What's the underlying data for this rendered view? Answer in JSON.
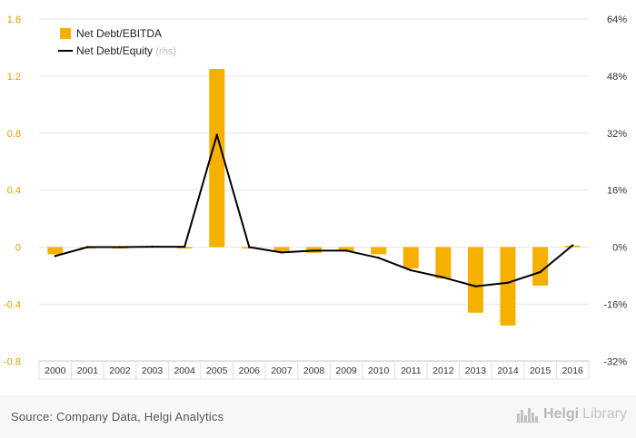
{
  "chart_data": {
    "type": "bar",
    "categories": [
      "2000",
      "2001",
      "2002",
      "2003",
      "2004",
      "2005",
      "2006",
      "2007",
      "2008",
      "2009",
      "2010",
      "2011",
      "2012",
      "2013",
      "2014",
      "2015",
      "2016"
    ],
    "series": [
      {
        "name": "Net Debt/EBITDA",
        "type": "bar",
        "axis": "left",
        "color": "#f5b000",
        "values": [
          -0.05,
          -0.01,
          -0.01,
          0.005,
          -0.005,
          1.25,
          -0.005,
          -0.03,
          -0.04,
          -0.03,
          -0.05,
          -0.15,
          -0.22,
          -0.46,
          -0.55,
          -0.27,
          0.01
        ]
      },
      {
        "name": "Net Debt/Equity",
        "name_suffix": "(rhs)",
        "type": "line",
        "axis": "right",
        "color": "#000000",
        "values": [
          -2.5,
          0.0,
          0.0,
          0.1,
          0.1,
          31.5,
          0.0,
          -1.5,
          -1.0,
          -1.0,
          -3.0,
          -6.5,
          -8.5,
          -11.0,
          -10.0,
          -7.0,
          0.5
        ]
      }
    ],
    "y_left": {
      "ylim": [
        -0.8,
        1.6
      ],
      "ticks": [
        "1.6",
        "1.2",
        "0.8",
        "0.4",
        "0",
        "-0.4",
        "-0.8"
      ],
      "tick_values": [
        1.6,
        1.2,
        0.8,
        0.4,
        0,
        -0.4,
        -0.8
      ]
    },
    "y_right": {
      "ylim": [
        -32,
        64
      ],
      "ticks": [
        "64%",
        "48%",
        "32%",
        "16%",
        "0%",
        "-16%",
        "-32%"
      ],
      "tick_values": [
        64,
        48,
        32,
        16,
        0,
        -16,
        -32
      ]
    },
    "grid": true,
    "legend_position": "top-left"
  },
  "footer": {
    "source": "Source: Company Data, Helgi Analytics",
    "brand_name": "Helgi",
    "brand_suffix": "Library"
  },
  "colors": {
    "left_tick": "#e0a000",
    "right_tick": "#333333",
    "grid": "#e6e6e6"
  },
  "icons": {
    "brand": "city-skyline-icon"
  }
}
